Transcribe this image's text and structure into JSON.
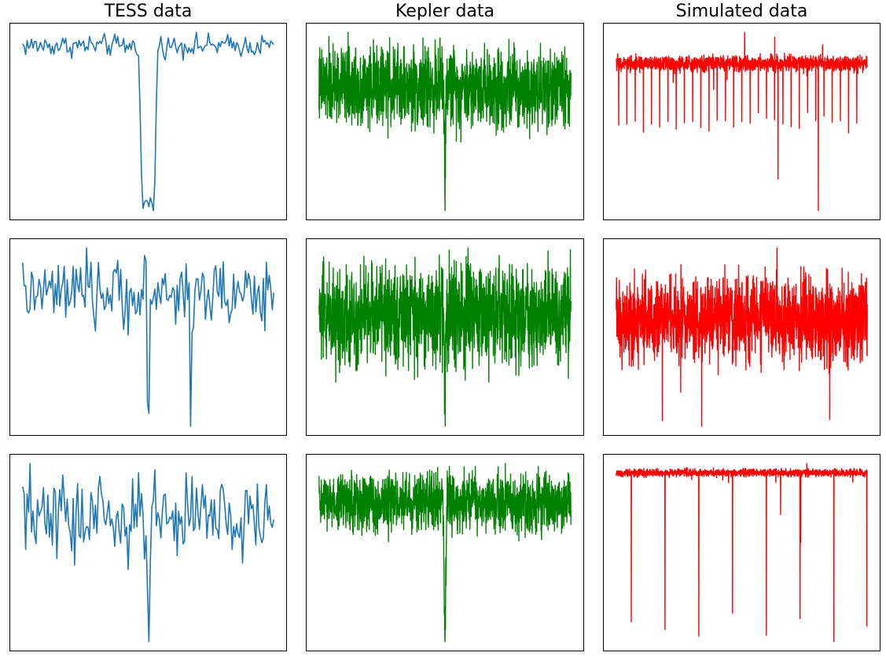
{
  "columns": [
    {
      "title": "TESS data",
      "color": "#1f77b4"
    },
    {
      "title": "Kepler data",
      "color": "#008000"
    },
    {
      "title": "Simulated data",
      "color": "#ff0000"
    }
  ],
  "chart_data": [
    {
      "type": "line",
      "column": "TESS data",
      "row": 1,
      "series": "tess",
      "n": 170,
      "ylim": [
        0.0,
        1.0
      ],
      "noise": 0.035,
      "dips": [
        {
          "center": 0.5,
          "half_width": 0.025,
          "depth": 0.82,
          "shape": "box"
        }
      ]
    },
    {
      "type": "line",
      "column": "Kepler data",
      "row": 1,
      "series": "kepler",
      "n": 1400,
      "ylim": [
        0.0,
        1.0
      ],
      "noise": 0.1,
      "dips": [
        {
          "center": 0.5,
          "half_width": 0.004,
          "depth": 0.55,
          "shape": "v"
        }
      ]
    },
    {
      "type": "line",
      "column": "Simulated data",
      "row": 1,
      "series": "sim",
      "n": 1600,
      "ylim": [
        0.0,
        1.0
      ],
      "noise": 0.025,
      "periodic_dips": {
        "count": 30,
        "first": 0.01,
        "period": 0.0327,
        "depth": 0.32
      },
      "extra_dips": [
        {
          "x": 0.645,
          "depth": 0.62
        },
        {
          "x": 0.805,
          "depth": 0.78
        }
      ]
    },
    {
      "type": "line",
      "column": "TESS data",
      "row": 2,
      "series": "tess",
      "n": 170,
      "ylim": [
        0.0,
        1.0
      ],
      "noise": 0.07,
      "dips": [
        {
          "center": 0.5,
          "half_width": 0.006,
          "depth": 0.72,
          "shape": "v"
        },
        {
          "center": 0.67,
          "half_width": 0.006,
          "depth": 0.45,
          "shape": "v"
        }
      ]
    },
    {
      "type": "line",
      "column": "Kepler data",
      "row": 2,
      "series": "kepler",
      "n": 1400,
      "ylim": [
        0.0,
        1.0
      ],
      "noise": 0.15,
      "dips": [
        {
          "center": 0.5,
          "half_width": 0.004,
          "depth": 0.42,
          "shape": "v"
        }
      ]
    },
    {
      "type": "line",
      "column": "Simulated data",
      "row": 2,
      "series": "sim",
      "n": 1600,
      "ylim": [
        0.0,
        1.0
      ],
      "noise": 0.16,
      "dips": []
    },
    {
      "type": "line",
      "column": "TESS data",
      "row": 3,
      "series": "tess",
      "n": 170,
      "ylim": [
        0.0,
        1.0
      ],
      "noise": 0.09,
      "dips": [
        {
          "center": 0.5,
          "half_width": 0.006,
          "depth": 0.68,
          "shape": "v"
        }
      ]
    },
    {
      "type": "line",
      "column": "Kepler data",
      "row": 3,
      "series": "kepler",
      "n": 1400,
      "ylim": [
        0.0,
        1.0
      ],
      "noise": 0.08,
      "dips": [
        {
          "center": 0.5,
          "half_width": 0.008,
          "depth": 0.68,
          "shape": "v"
        }
      ]
    },
    {
      "type": "line",
      "column": "Simulated data",
      "row": 3,
      "series": "sim",
      "n": 1600,
      "ylim": [
        0.0,
        1.0
      ],
      "noise": 0.012,
      "periodic_dips": {
        "count": 8,
        "first": 0.06,
        "period": 0.1345,
        "depth": 0.82
      },
      "extra_dips": [
        {
          "x": 0.655,
          "depth": 0.22
        },
        {
          "x": 0.735,
          "depth": 0.36
        },
        {
          "x": 0.998,
          "depth": 0.82
        }
      ]
    }
  ]
}
